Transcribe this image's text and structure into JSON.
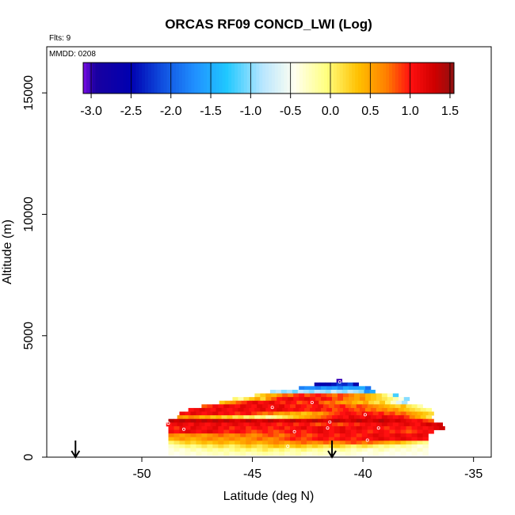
{
  "chart_data": {
    "type": "heatmap",
    "title": "ORCAS RF09 CONCD_LWI (Log)",
    "note_flights": "Flts: 9",
    "note_date": "MMDD: 0208",
    "xlabel": "Latitude (deg N)",
    "ylabel": "Altitude (m)",
    "xlim": [
      -54.3,
      -34.2
    ],
    "ylim": [
      0,
      16900
    ],
    "x_ticks": [
      -50,
      -45,
      -40,
      -35
    ],
    "y_ticks": [
      0,
      5000,
      10000,
      15000
    ],
    "colorbar": {
      "min": -3.1,
      "max": 1.55,
      "ticks": [
        -3.0,
        -2.5,
        -2.0,
        -1.5,
        -1.0,
        -0.5,
        0.0,
        0.5,
        1.0,
        1.5
      ],
      "tick_labels": [
        "-3.0",
        "-2.5",
        "-2.0",
        "-1.5",
        "-1.0",
        "-0.5",
        "0.0",
        "0.5",
        "1.0",
        "1.5"
      ],
      "colors": [
        "#7b0ee6",
        "#1a00a0",
        "#0000b0",
        "#1050e0",
        "#2090ff",
        "#20c8ff",
        "#b8e6ff",
        "#fffff0",
        "#ffff80",
        "#ffc000",
        "#ff8000",
        "#ff1010",
        "#d00000",
        "#901010"
      ],
      "stops": [
        -3.1,
        -2.95,
        -2.5,
        -2.1,
        -1.7,
        -1.3,
        -0.85,
        -0.45,
        -0.05,
        0.35,
        0.7,
        1.0,
        1.3,
        1.55
      ]
    },
    "arrows_lat": [
      -53.0,
      -41.4
    ],
    "grid": false,
    "legend": "colorbar top",
    "bin_width_deg": 0.25,
    "bin_height_m": 150,
    "rows": [
      {
        "alt": 3150,
        "from": -41.2,
        "cells": [
          -3.0
        ]
      },
      {
        "alt": 3000,
        "from": -42.2,
        "cells": [
          -2.7,
          -2.5,
          -2.6,
          -2.4,
          -2.2,
          -2.3,
          -2.1,
          -2.6
        ]
      },
      {
        "alt": 2850,
        "from": -42.9,
        "cells": [
          -1.8,
          -1.7,
          -1.7,
          -1.8,
          -1.6,
          -1.7,
          -1.6,
          -1.8,
          -1.5,
          -1.6,
          -1.6,
          -1.5,
          -1.9
        ]
      },
      {
        "alt": 2700,
        "from": -44.2,
        "cells": [
          -0.9,
          -0.8,
          -1.0,
          -0.9,
          -1.1,
          -0.8,
          -0.9,
          -1.0,
          -0.8,
          -0.9,
          -1.0,
          -0.7,
          -0.9,
          -1.0,
          -0.8,
          -0.9,
          -1.0,
          -1.7,
          -1.5
        ]
      },
      {
        "alt": 2550,
        "from": -44.9,
        "cells": [
          0.1,
          0.3,
          0.5,
          0.4,
          0.6,
          0.8,
          0.7,
          0.9,
          1.0,
          0.8,
          0.9,
          1.0,
          0.9,
          0.8,
          0.7,
          0.9,
          0.8,
          0.7,
          0.5,
          0.6,
          0.4,
          0.3,
          0.2,
          0.0,
          -0.3,
          -1.2
        ]
      },
      {
        "alt": 2400,
        "from": -45.9,
        "cells": [
          0.0,
          -0.2,
          0.1,
          0.3,
          0.5,
          0.2,
          0.6,
          0.8,
          1.0,
          1.1,
          1.2,
          1.0,
          1.1,
          1.2,
          1.0,
          0.9,
          1.1,
          1.0,
          0.8,
          0.9,
          0.7,
          0.6,
          0.5,
          0.7,
          0.4,
          0.3,
          0.2,
          0.1,
          0.0,
          -0.2,
          -0.4,
          -1.0
        ]
      },
      {
        "alt": 2250,
        "from": -46.5,
        "cells": [
          0.3,
          0.5,
          0.6,
          0.8,
          0.9,
          1.1,
          1.2,
          1.0,
          1.1,
          1.2,
          1.0,
          0.9,
          1.1,
          1.0,
          0.8,
          0.9,
          1.0,
          1.1,
          0.8,
          0.7,
          0.8,
          0.6,
          0.5,
          0.6,
          0.4,
          0.3,
          0.5,
          0.2,
          0.1,
          0.3,
          0.0,
          -0.3,
          -0.6,
          -0.9
        ]
      },
      {
        "alt": 2100,
        "from": -47.3,
        "cells": [
          0.8,
          0.9,
          1.1,
          1.0,
          1.2,
          1.1,
          1.0,
          1.2,
          1.1,
          1.0,
          1.2,
          1.1,
          1.0,
          1.1,
          1.2,
          1.0,
          0.9,
          1.1,
          1.0,
          0.9,
          1.0,
          1.1,
          0.9,
          0.8,
          0.9,
          1.0,
          0.8,
          0.7,
          0.9,
          0.8,
          0.7,
          0.6,
          0.5,
          0.4,
          0.3,
          0.2,
          0.4,
          0.1,
          0.0,
          -0.2
        ]
      },
      {
        "alt": 1950,
        "from": -47.9,
        "cells": [
          1.0,
          1.1,
          1.2,
          1.1,
          1.0,
          1.2,
          1.1,
          1.0,
          1.1,
          1.2,
          1.1,
          1.0,
          1.1,
          1.2,
          1.0,
          1.1,
          1.2,
          1.1,
          1.0,
          1.1,
          1.0,
          0.9,
          1.0,
          1.1,
          0.9,
          1.0,
          0.8,
          0.9,
          1.0,
          0.9,
          0.8,
          0.9,
          0.7,
          0.8,
          0.6,
          0.7,
          0.5,
          0.6,
          0.4,
          0.3,
          0.2,
          0.1,
          0.0,
          -0.1
        ]
      },
      {
        "alt": 1800,
        "from": -48.3,
        "cells": [
          1.1,
          1.0,
          1.2,
          1.1,
          1.0,
          1.1,
          1.2,
          1.0,
          1.1,
          1.0,
          0.9,
          1.0,
          1.1,
          0.9,
          0.8,
          0.7,
          0.8,
          0.6,
          0.5,
          0.6,
          0.4,
          0.5,
          0.3,
          0.4,
          0.6,
          0.5,
          0.7,
          0.8,
          0.9,
          1.0,
          1.1,
          1.0,
          0.9,
          1.1,
          1.0,
          0.9,
          1.0,
          0.8,
          0.9,
          0.7,
          0.8,
          0.6,
          0.5,
          0.4,
          0.3,
          0.2
        ]
      },
      {
        "alt": 1650,
        "from": -48.4,
        "cells": [
          0.6,
          0.5,
          0.7,
          0.6,
          0.4,
          0.5,
          0.3,
          0.4,
          0.2,
          0.3,
          0.1,
          0.2,
          0.0,
          0.1,
          -0.1,
          0.0,
          -0.2,
          -0.1,
          0.0,
          0.1,
          0.2,
          0.3,
          0.4,
          0.5,
          0.6,
          0.7,
          0.8,
          0.9,
          1.0,
          1.1,
          1.0,
          1.2,
          1.1,
          1.0,
          1.2,
          1.1,
          1.0,
          1.2,
          1.1,
          1.0,
          1.1,
          0.9,
          0.7,
          0.5,
          0.3,
          0.1
        ]
      },
      {
        "alt": 1500,
        "from": -48.8,
        "cells": [
          1.4,
          1.3,
          1.4,
          1.3,
          1.4,
          1.3,
          1.4,
          1.3,
          1.4,
          1.3,
          1.4,
          1.3,
          1.2,
          1.3,
          1.4,
          1.3,
          1.2,
          1.3,
          1.4,
          1.3,
          1.2,
          1.3,
          1.4,
          1.3,
          1.2,
          1.3,
          1.4,
          1.3,
          1.2,
          1.3,
          1.4,
          1.3,
          1.2,
          1.3,
          1.4,
          1.3,
          1.2,
          1.3,
          1.4,
          1.3,
          1.2,
          1.3,
          1.2,
          1.1,
          1.0,
          1.1,
          0.9,
          0.8
        ]
      },
      {
        "alt": 1350,
        "from": -48.9,
        "cells": [
          1.0,
          1.1,
          1.2,
          1.1,
          1.0,
          1.2,
          1.1,
          1.0,
          1.1,
          1.2,
          1.0,
          1.1,
          1.2,
          1.1,
          1.0,
          1.1,
          1.2,
          1.0,
          1.1,
          1.0,
          0.9,
          1.0,
          1.1,
          0.9,
          1.0,
          1.1,
          0.9,
          0.8,
          0.9,
          1.0,
          0.9,
          0.8,
          0.9,
          1.0,
          0.9,
          1.0,
          1.1,
          1.0,
          1.1,
          1.2,
          1.1,
          1.0,
          1.1,
          1.2,
          1.1,
          1.0,
          1.2,
          1.3,
          1.2,
          1.3
        ]
      },
      {
        "alt": 1200,
        "from": -48.8,
        "cells": [
          1.0,
          0.9,
          1.1,
          1.0,
          1.2,
          1.1,
          1.0,
          1.1,
          1.2,
          1.0,
          1.1,
          0.9,
          1.0,
          1.1,
          0.9,
          1.0,
          1.1,
          1.0,
          0.9,
          1.0,
          1.1,
          0.9,
          1.0,
          1.1,
          1.2,
          1.0,
          1.1,
          1.2,
          1.1,
          1.0,
          1.1,
          1.2,
          1.0,
          1.1,
          1.2,
          1.1,
          1.0,
          1.1,
          1.0,
          0.9,
          1.0,
          1.1,
          1.0,
          0.9,
          1.0,
          1.1,
          1.0,
          1.1,
          1.2,
          1.3
        ]
      },
      {
        "alt": 1050,
        "from": -48.8,
        "cells": [
          1.1,
          1.0,
          1.1,
          1.2,
          1.1,
          1.0,
          1.1,
          1.2,
          1.1,
          1.0,
          0.9,
          1.0,
          1.1,
          1.0,
          0.9,
          0.8,
          0.9,
          1.0,
          0.9,
          0.8,
          0.9,
          1.0,
          1.1,
          1.0,
          0.9,
          1.0,
          1.1,
          1.2,
          1.1,
          1.0,
          1.1,
          1.2,
          1.1,
          1.0,
          1.1,
          1.0,
          0.9,
          1.0,
          1.1,
          1.0,
          0.9,
          1.0,
          0.9,
          0.8,
          0.9,
          1.0,
          1.1,
          1.0
        ]
      },
      {
        "alt": 900,
        "from": -48.8,
        "cells": [
          0.7,
          0.6,
          0.5,
          0.6,
          0.7,
          0.6,
          0.5,
          0.6,
          0.7,
          0.8,
          0.7,
          0.6,
          0.7,
          0.8,
          0.7,
          0.6,
          0.7,
          0.8,
          0.9,
          0.8,
          0.7,
          0.8,
          0.9,
          1.0,
          0.9,
          0.8,
          0.9,
          1.0,
          1.1,
          1.0,
          0.9,
          1.0,
          1.1,
          1.0,
          0.9,
          1.0,
          1.1,
          1.2,
          1.1,
          1.0,
          1.1,
          1.2,
          1.1,
          1.0,
          1.1,
          1.2,
          1.1
        ]
      },
      {
        "alt": 750,
        "from": -48.8,
        "cells": [
          0.4,
          0.5,
          0.6,
          0.5,
          0.4,
          0.5,
          0.6,
          0.7,
          0.6,
          0.5,
          0.6,
          0.7,
          0.6,
          0.5,
          0.6,
          0.7,
          0.8,
          0.7,
          0.6,
          0.7,
          0.8,
          0.9,
          1.0,
          0.9,
          0.8,
          0.9,
          1.0,
          1.1,
          1.0,
          0.9,
          1.0,
          1.1,
          1.0,
          0.9,
          1.0,
          1.1,
          1.0,
          1.1,
          1.2,
          1.1,
          1.0,
          1.1,
          1.2,
          1.1,
          1.0,
          1.1,
          1.0
        ]
      },
      {
        "alt": 600,
        "from": -48.8,
        "cells": [
          0.0,
          0.1,
          0.2,
          0.3,
          0.2,
          0.3,
          0.4,
          0.3,
          0.4,
          0.5,
          0.4,
          0.3,
          0.4,
          0.5,
          0.6,
          0.5,
          0.4,
          0.5,
          0.6,
          0.7,
          0.6,
          0.5,
          0.6,
          0.7,
          0.8,
          0.7,
          0.6,
          0.7,
          0.8,
          0.7,
          0.6,
          0.7,
          0.8,
          0.9,
          0.8,
          0.7,
          0.8,
          0.7,
          0.6,
          0.5,
          0.4,
          0.5,
          0.3,
          0.2,
          0.1,
          0.0,
          -0.1
        ]
      },
      {
        "alt": 450,
        "from": -48.8,
        "cells": [
          -0.3,
          -0.2,
          -0.1,
          0.0,
          -0.1,
          0.0,
          0.1,
          0.0,
          0.1,
          0.2,
          0.1,
          0.0,
          0.1,
          0.2,
          0.3,
          0.2,
          0.1,
          0.2,
          0.3,
          0.4,
          0.3,
          0.2,
          0.3,
          0.4,
          0.3,
          0.2,
          0.3,
          0.2,
          0.1,
          0.2,
          0.3,
          0.2,
          0.1,
          0.0,
          0.1,
          0.2,
          0.1,
          0.0,
          -0.1,
          0.0,
          -0.1,
          -0.2,
          -0.1,
          -0.2,
          -0.3,
          -0.4,
          -0.3
        ]
      },
      {
        "alt": 300,
        "from": -48.8,
        "cells": [
          -0.4,
          -0.3,
          -0.4,
          -0.3,
          -0.2,
          -0.3,
          -0.2,
          -0.1,
          -0.2,
          -0.1,
          -0.2,
          -0.1,
          0.0,
          -0.1,
          0.0,
          -0.1,
          0.0,
          0.1,
          0.0,
          -0.1,
          0.0,
          -0.1,
          -0.2,
          -0.1,
          0.0,
          -0.1,
          -0.2,
          -0.1,
          -0.2,
          -0.3,
          -0.2,
          -0.1,
          -0.2,
          -0.3,
          -0.2,
          -0.3,
          -0.4,
          -0.3,
          -0.2,
          -0.3,
          -0.4,
          -0.3,
          -0.4,
          -0.3,
          -0.4,
          -0.3,
          -0.4
        ]
      },
      {
        "alt": 150,
        "from": -48.8,
        "cells": [
          -0.4,
          -0.45,
          -0.4,
          -0.35,
          -0.4,
          -0.3,
          -0.35,
          -0.3,
          -0.25,
          -0.3,
          -0.2,
          -0.3,
          -0.25,
          -0.2,
          -0.3,
          -0.25,
          -0.2,
          -0.15,
          -0.2,
          -0.25,
          -0.2,
          -0.3,
          -0.25,
          -0.2,
          -0.3,
          -0.35,
          -0.3,
          -0.25,
          -0.3,
          -0.35,
          -0.4,
          -0.35,
          -0.3,
          -0.35,
          -0.4,
          -0.45,
          -0.4,
          -0.35,
          -0.4,
          -0.45,
          -0.4,
          -0.45,
          -0.4,
          -0.45,
          -0.4,
          -0.45,
          -0.4
        ]
      }
    ],
    "dots": [
      {
        "x": -41.05,
        "y": 3100
      },
      {
        "x": -44.1,
        "y": 2050
      },
      {
        "x": -42.3,
        "y": 2250
      },
      {
        "x": -39.9,
        "y": 1750
      },
      {
        "x": -48.8,
        "y": 1400
      },
      {
        "x": -48.1,
        "y": 1150
      },
      {
        "x": -41.5,
        "y": 1450
      },
      {
        "x": -41.6,
        "y": 1200
      },
      {
        "x": -39.3,
        "y": 1200
      },
      {
        "x": -43.1,
        "y": 1050
      },
      {
        "x": -39.8,
        "y": 700
      },
      {
        "x": -43.4,
        "y": 450
      }
    ]
  }
}
